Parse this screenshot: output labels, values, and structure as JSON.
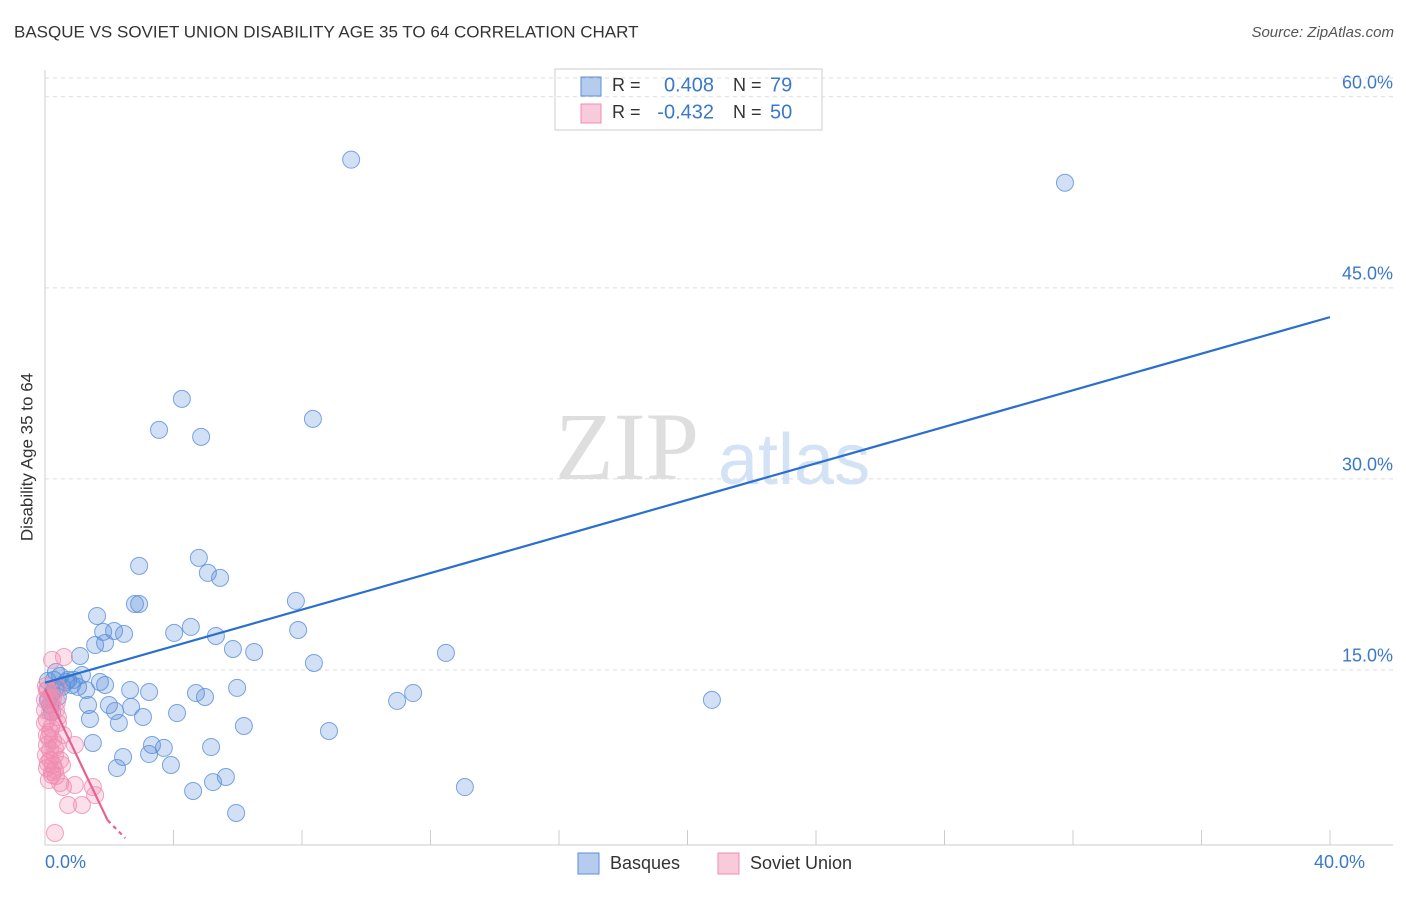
{
  "chart_data": {
    "type": "scatter",
    "title": "BASQUE VS SOVIET UNION DISABILITY AGE 35 TO 64 CORRELATION CHART",
    "source": "Source: ZipAtlas.com",
    "watermark": [
      "ZIP",
      "atlas"
    ],
    "y_label": "Disability Age 35 to 64",
    "legend_labels": {
      "r": "R =",
      "n": "N ="
    },
    "xlim": [
      0,
      40
    ],
    "ylim": [
      1.26,
      62.1
    ],
    "xticks": [
      {
        "value": 0,
        "label": "0.0%"
      },
      {
        "value": 40,
        "label": "40.0%"
      }
    ],
    "xminor_ticks": [
      4,
      8,
      12,
      16,
      20,
      24,
      28,
      32,
      36
    ],
    "yticks": [
      {
        "value": 15,
        "label": "15.0%"
      },
      {
        "value": 30,
        "label": "30.0%"
      },
      {
        "value": 45,
        "label": "45.0%"
      },
      {
        "value": 60,
        "label": "60.0%"
      }
    ],
    "grid": true,
    "series": [
      {
        "name": "Basques",
        "color": "#5b8fd9",
        "line_color": "#2b6fce",
        "r": 0.408,
        "n": 79,
        "x": [
          9.53,
          31.75,
          4.26,
          3.55,
          4.86,
          8.34,
          2.93,
          4.79,
          5.07,
          5.45,
          2.8,
          2.93,
          1.62,
          7.81,
          4.54,
          4.02,
          1.81,
          2.15,
          2.46,
          5.32,
          7.88,
          1.56,
          1.87,
          5.85,
          6.51,
          12.48,
          8.37,
          1.09,
          0.47,
          0.72,
          0.84,
          1.03,
          1.28,
          1.71,
          1.87,
          2.65,
          3.24,
          4.7,
          4.98,
          5.98,
          11.46,
          10.96,
          20.76,
          0.31,
          0.22,
          0.4,
          0.16,
          1.34,
          1.99,
          2.18,
          2.68,
          3.05,
          4.11,
          1.4,
          2.3,
          6.19,
          8.84,
          1.49,
          3.33,
          3.7,
          2.43,
          3.24,
          5.17,
          3.92,
          2.24,
          5.63,
          5.23,
          4.61,
          13.07,
          5.95,
          0.09,
          0.28,
          0.53,
          0.65,
          0.09,
          0.34,
          0.9,
          1.15,
          0.22
        ],
        "y": [
          55.06,
          53.25,
          36.28,
          33.85,
          33.3,
          34.71,
          23.17,
          23.8,
          22.62,
          22.23,
          20.18,
          20.18,
          19.24,
          20.42,
          18.38,
          17.91,
          17.99,
          18.06,
          17.83,
          17.67,
          18.14,
          16.96,
          17.12,
          16.65,
          16.41,
          16.34,
          15.55,
          16.1,
          14.53,
          14.22,
          13.82,
          13.67,
          13.43,
          14.06,
          13.82,
          13.43,
          13.27,
          13.19,
          12.88,
          13.59,
          13.19,
          12.57,
          12.65,
          13.51,
          13.12,
          12.88,
          12.25,
          12.25,
          12.25,
          11.78,
          12.1,
          11.31,
          11.62,
          11.15,
          10.84,
          10.6,
          10.21,
          9.27,
          9.11,
          8.88,
          8.17,
          8.4,
          8.95,
          7.54,
          7.3,
          6.6,
          6.2,
          5.5,
          5.81,
          3.77,
          14.14,
          14.22,
          13.67,
          14.06,
          12.65,
          14.84,
          14.22,
          14.61,
          11.7
        ],
        "trend": {
          "x": [
            0,
            40
          ],
          "y": [
            14.0,
            42.7
          ]
        }
      },
      {
        "name": "Soviet Union",
        "color": "#f08cb0",
        "line_color": "#e8608f",
        "r": -0.432,
        "n": 50,
        "x": [
          0.22,
          0.59,
          0.06,
          0.12,
          0.22,
          0.34,
          0.06,
          0.19,
          0.06,
          0.25,
          0.37,
          0.16,
          0.31,
          0.47,
          0.56,
          0.06,
          0.22,
          0.34,
          0.12,
          0.93,
          0.31,
          0.47,
          0.93,
          0.72,
          1.15,
          1.49,
          1.56,
          0.31,
          0.09,
          0.16,
          0.4,
          0,
          0.06,
          0.16,
          0.25,
          0.4,
          0.53,
          0,
          0.03,
          0.25,
          0.4,
          0,
          0.16,
          0.31,
          0.03,
          0.09,
          0.22,
          0.56,
          0.12,
          0.37
        ],
        "y": [
          15.79,
          16.02,
          13.43,
          12.65,
          12.25,
          11.86,
          11.07,
          10.45,
          9.9,
          9.5,
          9.11,
          8.72,
          8.33,
          7.93,
          9.9,
          7.3,
          6.99,
          6.68,
          6.36,
          9.11,
          7.15,
          6.13,
          5.97,
          4.4,
          4.4,
          5.81,
          5.18,
          2.2,
          13.43,
          11.7,
          11.31,
          10.84,
          9.11,
          7.93,
          7.54,
          10.84,
          7.54,
          12.65,
          13.74,
          12.8,
          13.59,
          11.86,
          10.13,
          8.88,
          8.33,
          7.7,
          6.75,
          5.81,
          9.66,
          12.49
        ],
        "trend": {
          "x": [
            0,
            1.95
          ],
          "y": [
            13.5,
            3.2
          ]
        },
        "trend_extension": {
          "x": [
            1.95,
            2.5
          ],
          "y": [
            3.2,
            1.8
          ]
        }
      }
    ]
  }
}
